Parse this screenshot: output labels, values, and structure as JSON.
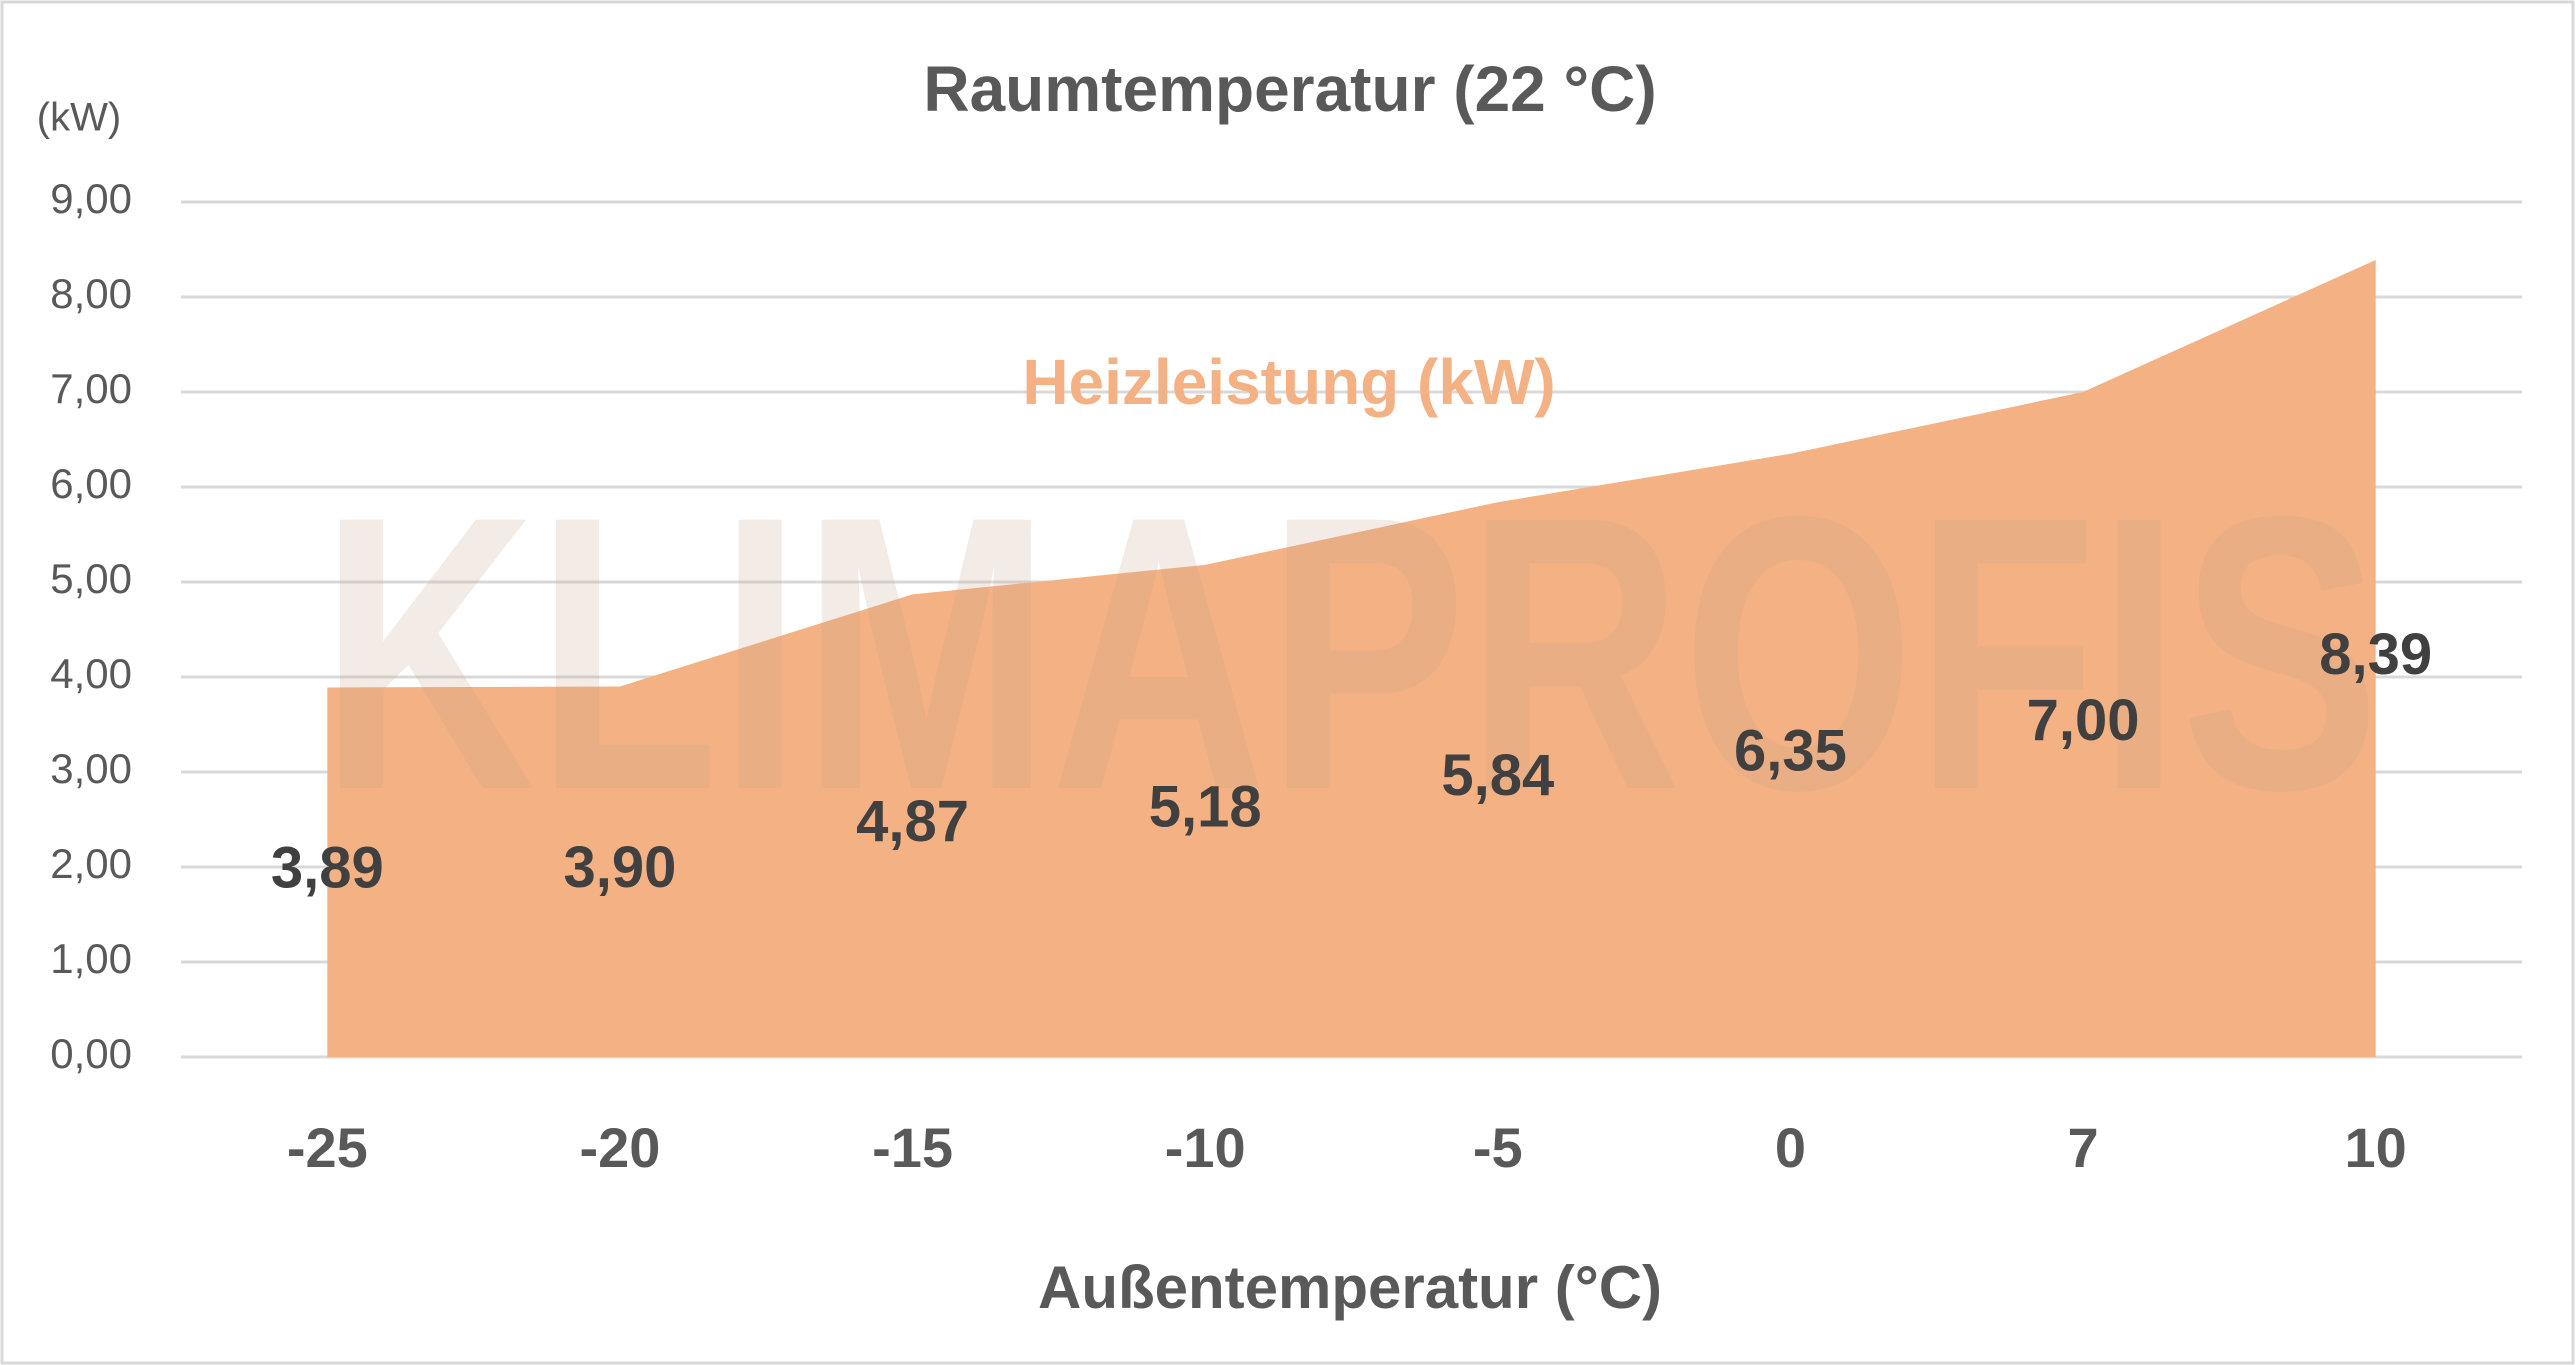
{
  "chart_data": {
    "type": "area",
    "title": "Raumtemperatur (22 °C)",
    "y_unit_label": "(kW)",
    "x_axis_label": "Außentemperatur (°C)",
    "series_label": "Heizleistung (kW)",
    "watermark": "KLIMAPROFIS",
    "categories": [
      "-25",
      "-20",
      "-15",
      "-10",
      "-5",
      "0",
      "7",
      "10"
    ],
    "values": [
      3.89,
      3.9,
      4.87,
      5.18,
      5.84,
      6.35,
      7.0,
      8.39
    ],
    "value_labels": [
      "3,89",
      "3,90",
      "4,87",
      "5,18",
      "5,84",
      "6,35",
      "7,00",
      "8,39"
    ],
    "color": "#f4b183",
    "ylim": [
      0,
      9
    ],
    "yticks": [
      {
        "value": 0,
        "label": "0,00"
      },
      {
        "value": 1,
        "label": "1,00"
      },
      {
        "value": 2,
        "label": "2,00"
      },
      {
        "value": 3,
        "label": "3,00"
      },
      {
        "value": 4,
        "label": "4,00"
      },
      {
        "value": 5,
        "label": "5,00"
      },
      {
        "value": 6,
        "label": "6,00"
      },
      {
        "value": 7,
        "label": "7,00"
      },
      {
        "value": 8,
        "label": "8,00"
      },
      {
        "value": 9,
        "label": "9,00"
      }
    ],
    "grid": true
  }
}
